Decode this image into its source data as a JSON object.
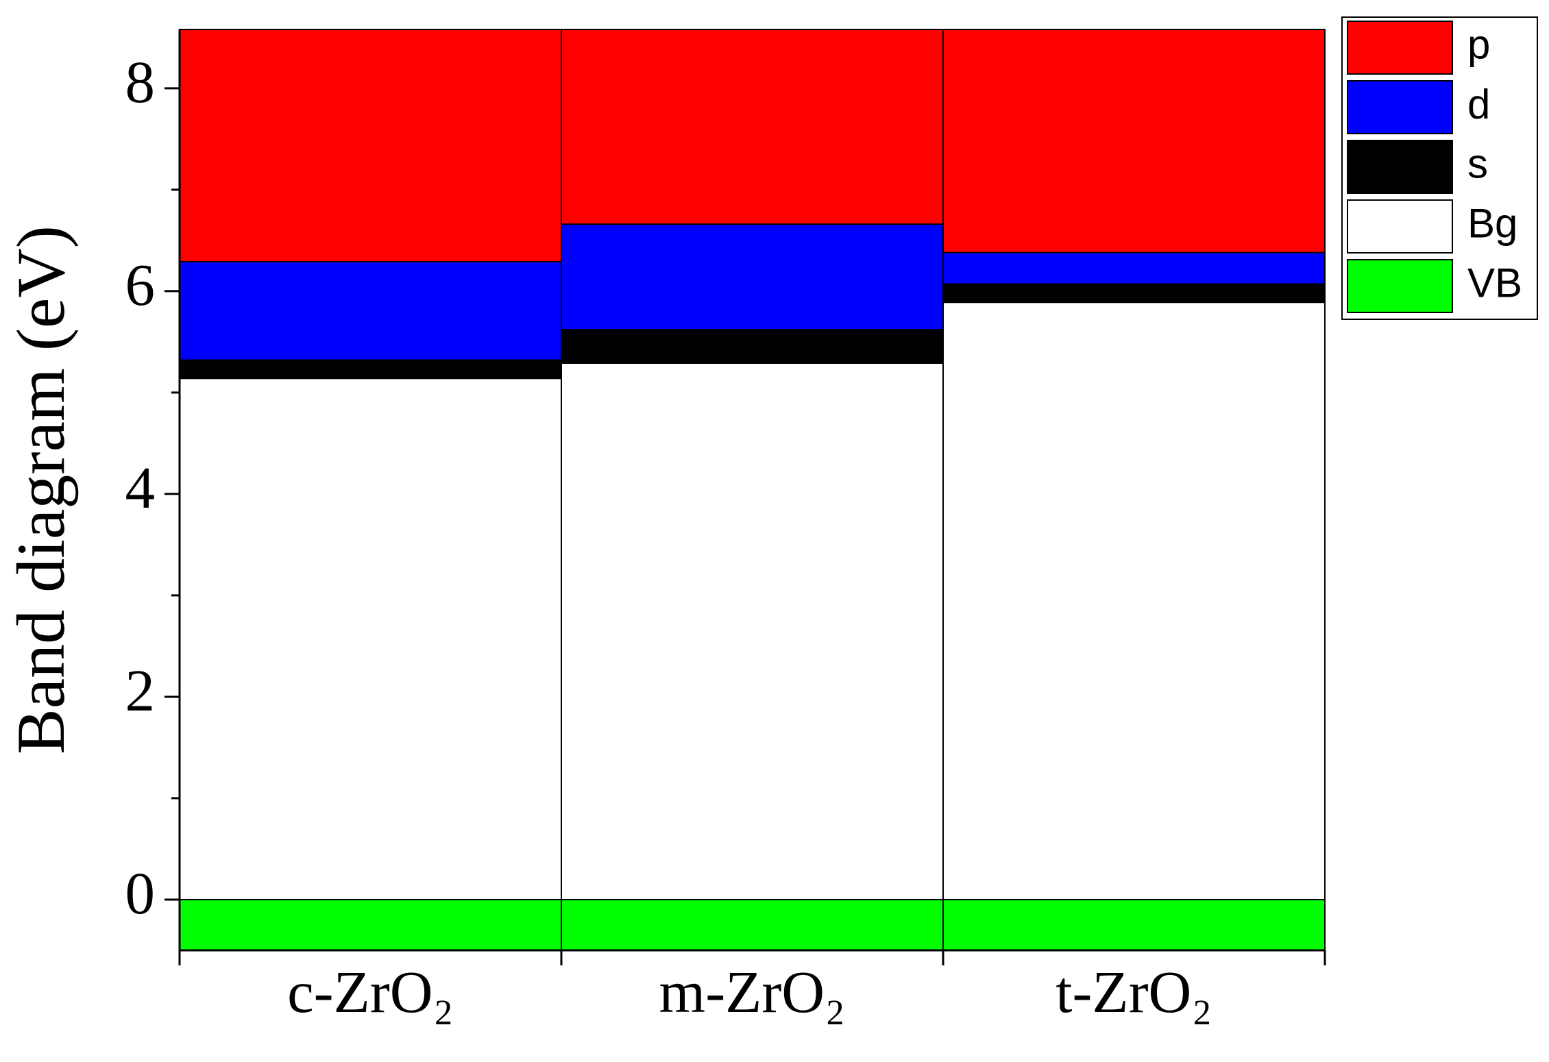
{
  "chart_data": {
    "type": "stacked_bar",
    "ylabel": "Band diagram (eV)",
    "categories": [
      "c-ZrO₂",
      "m-ZrO₂",
      "t-ZrO₂"
    ],
    "series": [
      {
        "name": "VB",
        "color": "#00ff00",
        "values": [
          -0.5,
          -0.5,
          -0.5
        ]
      },
      {
        "name": "Bg",
        "color": "#ffffff",
        "values": [
          5.14,
          5.29,
          5.89
        ]
      },
      {
        "name": "s",
        "color": "#000000",
        "values": [
          0.18,
          0.33,
          0.18
        ]
      },
      {
        "name": "d",
        "color": "#0000ff",
        "values": [
          0.97,
          1.04,
          0.31
        ]
      },
      {
        "name": "p",
        "color": "#ff0000",
        "values": [
          2.29,
          1.92,
          2.2
        ]
      }
    ],
    "ylim": [
      -0.5,
      8.58
    ],
    "yticks": [
      0,
      2,
      4,
      6,
      8
    ],
    "yminorticks": [
      1,
      3,
      5,
      7
    ],
    "legend": "right"
  }
}
